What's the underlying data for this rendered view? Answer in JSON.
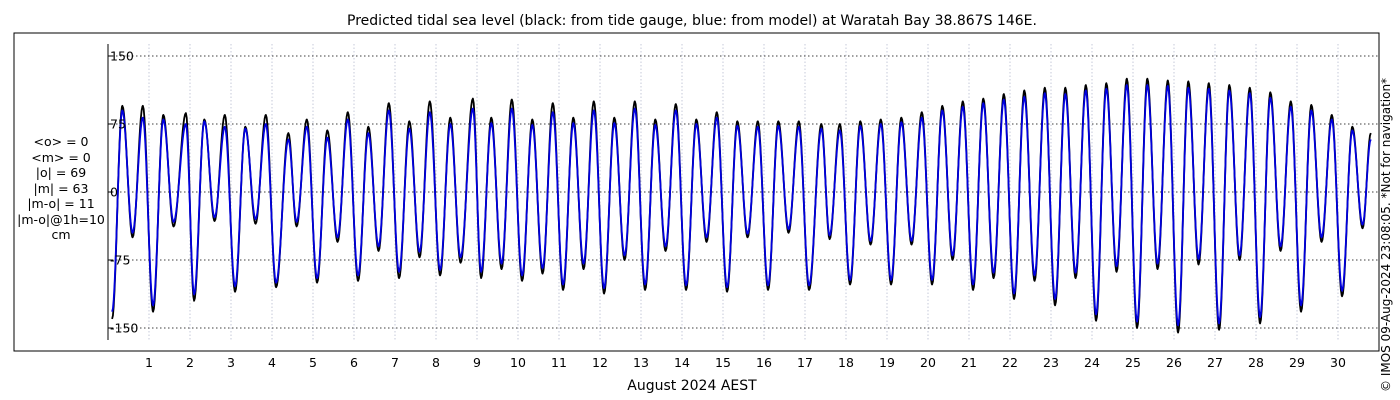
{
  "chart_data": {
    "type": "line",
    "title": "Predicted tidal sea level (black: from tide gauge, blue: from model) at Waratah Bay 38.867S 146E.",
    "xlabel": "August 2024 AEST",
    "ylabel": "",
    "ylim": [
      -150,
      150
    ],
    "xlim": [
      0,
      31
    ],
    "yticks": [
      -150,
      -75,
      0,
      75,
      150
    ],
    "y_tick_labels": [
      "-150",
      "-75",
      "0",
      "75",
      "150"
    ],
    "x_tick_labels": [
      "1",
      "2",
      "3",
      "4",
      "5",
      "6",
      "7",
      "8",
      "9",
      "10",
      "11",
      "12",
      "13",
      "14",
      "15",
      "16",
      "17",
      "18",
      "19",
      "20",
      "21",
      "22",
      "23",
      "24",
      "25",
      "26",
      "27",
      "28",
      "29",
      "30"
    ],
    "grid": true,
    "series_colors": {
      "gauge": "#000000",
      "model": "#0000dd"
    },
    "series": [
      {
        "color": "#000000",
        "high_tides": [
          [
            0.35,
            95
          ],
          [
            0.85,
            95
          ],
          [
            1.35,
            85
          ],
          [
            1.9,
            87
          ],
          [
            2.35,
            80
          ],
          [
            2.85,
            85
          ],
          [
            3.35,
            72
          ],
          [
            3.85,
            85
          ],
          [
            4.4,
            65
          ],
          [
            4.85,
            80
          ],
          [
            5.35,
            68
          ],
          [
            5.85,
            88
          ],
          [
            6.35,
            72
          ],
          [
            6.85,
            98
          ],
          [
            7.35,
            78
          ],
          [
            7.85,
            100
          ],
          [
            8.35,
            82
          ],
          [
            8.9,
            103
          ],
          [
            9.35,
            82
          ],
          [
            9.85,
            102
          ],
          [
            10.35,
            80
          ],
          [
            10.85,
            98
          ],
          [
            11.35,
            82
          ],
          [
            11.85,
            100
          ],
          [
            12.35,
            82
          ],
          [
            12.85,
            100
          ],
          [
            13.35,
            80
          ],
          [
            13.85,
            97
          ],
          [
            14.35,
            80
          ],
          [
            14.85,
            88
          ],
          [
            15.35,
            78
          ],
          [
            15.85,
            78
          ],
          [
            16.35,
            78
          ],
          [
            16.85,
            78
          ],
          [
            17.4,
            75
          ],
          [
            17.85,
            75
          ],
          [
            18.35,
            78
          ],
          [
            18.85,
            80
          ],
          [
            19.35,
            82
          ],
          [
            19.85,
            88
          ],
          [
            20.35,
            95
          ],
          [
            20.85,
            100
          ],
          [
            21.35,
            103
          ],
          [
            21.85,
            108
          ],
          [
            22.35,
            112
          ],
          [
            22.85,
            115
          ],
          [
            23.35,
            115
          ],
          [
            23.85,
            118
          ],
          [
            24.35,
            120
          ],
          [
            24.85,
            125
          ],
          [
            25.35,
            125
          ],
          [
            25.85,
            123
          ],
          [
            26.35,
            122
          ],
          [
            26.85,
            120
          ],
          [
            27.35,
            118
          ],
          [
            27.85,
            115
          ],
          [
            28.35,
            110
          ],
          [
            28.85,
            100
          ],
          [
            29.35,
            96
          ],
          [
            29.85,
            85
          ],
          [
            30.35,
            72
          ],
          [
            30.8,
            65
          ]
        ],
        "low_tides": [
          [
            0.1,
            -140
          ],
          [
            0.6,
            -50
          ],
          [
            1.1,
            -132
          ],
          [
            1.6,
            -38
          ],
          [
            2.1,
            -120
          ],
          [
            2.6,
            -32
          ],
          [
            3.1,
            -110
          ],
          [
            3.6,
            -35
          ],
          [
            4.1,
            -105
          ],
          [
            4.6,
            -38
          ],
          [
            5.1,
            -100
          ],
          [
            5.6,
            -55
          ],
          [
            6.1,
            -98
          ],
          [
            6.6,
            -65
          ],
          [
            7.1,
            -95
          ],
          [
            7.6,
            -72
          ],
          [
            8.1,
            -92
          ],
          [
            8.6,
            -78
          ],
          [
            9.1,
            -95
          ],
          [
            9.6,
            -85
          ],
          [
            10.1,
            -98
          ],
          [
            10.6,
            -90
          ],
          [
            11.1,
            -108
          ],
          [
            11.6,
            -85
          ],
          [
            12.1,
            -112
          ],
          [
            12.6,
            -75
          ],
          [
            13.1,
            -108
          ],
          [
            13.6,
            -65
          ],
          [
            14.1,
            -108
          ],
          [
            14.6,
            -55
          ],
          [
            15.1,
            -110
          ],
          [
            15.6,
            -50
          ],
          [
            16.1,
            -108
          ],
          [
            16.6,
            -45
          ],
          [
            17.1,
            -108
          ],
          [
            17.6,
            -52
          ],
          [
            18.1,
            -102
          ],
          [
            18.6,
            -58
          ],
          [
            19.1,
            -102
          ],
          [
            19.6,
            -58
          ],
          [
            20.1,
            -102
          ],
          [
            20.6,
            -75
          ],
          [
            21.1,
            -108
          ],
          [
            21.6,
            -95
          ],
          [
            22.1,
            -118
          ],
          [
            22.6,
            -98
          ],
          [
            23.1,
            -125
          ],
          [
            23.6,
            -95
          ],
          [
            24.1,
            -142
          ],
          [
            24.6,
            -88
          ],
          [
            25.1,
            -150
          ],
          [
            25.6,
            -85
          ],
          [
            26.1,
            -155
          ],
          [
            26.6,
            -80
          ],
          [
            27.1,
            -152
          ],
          [
            27.6,
            -75
          ],
          [
            28.1,
            -145
          ],
          [
            28.6,
            -65
          ],
          [
            29.1,
            -132
          ],
          [
            29.6,
            -55
          ],
          [
            30.1,
            -115
          ],
          [
            30.6,
            -40
          ]
        ]
      },
      {
        "color": "#0000dd",
        "high_tides": [
          [
            0.35,
            90
          ],
          [
            0.85,
            82
          ],
          [
            1.35,
            80
          ],
          [
            1.9,
            75
          ],
          [
            2.35,
            78
          ],
          [
            2.85,
            72
          ],
          [
            3.35,
            70
          ],
          [
            3.85,
            75
          ],
          [
            4.4,
            58
          ],
          [
            4.85,
            72
          ],
          [
            5.35,
            60
          ],
          [
            5.85,
            80
          ],
          [
            6.35,
            65
          ],
          [
            6.85,
            90
          ],
          [
            7.35,
            70
          ],
          [
            7.85,
            88
          ],
          [
            8.35,
            75
          ],
          [
            8.9,
            92
          ],
          [
            9.35,
            76
          ],
          [
            9.85,
            92
          ],
          [
            10.35,
            74
          ],
          [
            10.85,
            88
          ],
          [
            11.35,
            76
          ],
          [
            11.85,
            90
          ],
          [
            12.35,
            76
          ],
          [
            12.85,
            92
          ],
          [
            13.35,
            74
          ],
          [
            13.85,
            90
          ],
          [
            14.35,
            75
          ],
          [
            14.85,
            82
          ],
          [
            15.35,
            73
          ],
          [
            15.85,
            72
          ],
          [
            16.35,
            73
          ],
          [
            16.85,
            72
          ],
          [
            17.4,
            70
          ],
          [
            17.85,
            68
          ],
          [
            18.35,
            73
          ],
          [
            18.85,
            75
          ],
          [
            19.35,
            77
          ],
          [
            19.85,
            82
          ],
          [
            20.35,
            90
          ],
          [
            20.85,
            94
          ],
          [
            21.35,
            98
          ],
          [
            21.85,
            102
          ],
          [
            22.35,
            105
          ],
          [
            22.85,
            109
          ],
          [
            23.35,
            108
          ],
          [
            23.85,
            112
          ],
          [
            24.35,
            114
          ],
          [
            24.85,
            118
          ],
          [
            25.35,
            118
          ],
          [
            25.85,
            117
          ],
          [
            26.35,
            115
          ],
          [
            26.85,
            114
          ],
          [
            27.35,
            112
          ],
          [
            27.85,
            109
          ],
          [
            28.35,
            104
          ],
          [
            28.85,
            94
          ],
          [
            29.35,
            90
          ],
          [
            29.85,
            80
          ],
          [
            30.35,
            68
          ],
          [
            30.8,
            58
          ]
        ],
        "low_tides": [
          [
            0.1,
            -132
          ],
          [
            0.6,
            -45
          ],
          [
            1.1,
            -125
          ],
          [
            1.6,
            -33
          ],
          [
            2.1,
            -113
          ],
          [
            2.6,
            -28
          ],
          [
            3.1,
            -104
          ],
          [
            3.6,
            -30
          ],
          [
            4.1,
            -100
          ],
          [
            4.6,
            -33
          ],
          [
            5.1,
            -95
          ],
          [
            5.6,
            -50
          ],
          [
            6.1,
            -92
          ],
          [
            6.6,
            -60
          ],
          [
            7.1,
            -88
          ],
          [
            7.6,
            -66
          ],
          [
            8.1,
            -86
          ],
          [
            8.6,
            -72
          ],
          [
            9.1,
            -88
          ],
          [
            9.6,
            -79
          ],
          [
            10.1,
            -92
          ],
          [
            10.6,
            -84
          ],
          [
            11.1,
            -102
          ],
          [
            11.6,
            -79
          ],
          [
            12.1,
            -106
          ],
          [
            12.6,
            -70
          ],
          [
            13.1,
            -102
          ],
          [
            13.6,
            -60
          ],
          [
            14.1,
            -103
          ],
          [
            14.6,
            -50
          ],
          [
            15.1,
            -105
          ],
          [
            15.6,
            -46
          ],
          [
            16.1,
            -103
          ],
          [
            16.6,
            -41
          ],
          [
            17.1,
            -103
          ],
          [
            17.6,
            -48
          ],
          [
            18.1,
            -97
          ],
          [
            18.6,
            -54
          ],
          [
            19.1,
            -97
          ],
          [
            19.6,
            -54
          ],
          [
            20.1,
            -97
          ],
          [
            20.6,
            -70
          ],
          [
            21.1,
            -102
          ],
          [
            21.6,
            -89
          ],
          [
            22.1,
            -112
          ],
          [
            22.6,
            -92
          ],
          [
            23.1,
            -118
          ],
          [
            23.6,
            -89
          ],
          [
            24.1,
            -135
          ],
          [
            24.6,
            -82
          ],
          [
            25.1,
            -143
          ],
          [
            25.6,
            -79
          ],
          [
            26.1,
            -147
          ],
          [
            26.6,
            -74
          ],
          [
            27.1,
            -145
          ],
          [
            27.6,
            -70
          ],
          [
            28.1,
            -138
          ],
          [
            28.6,
            -60
          ],
          [
            29.1,
            -125
          ],
          [
            29.6,
            -50
          ],
          [
            30.1,
            -109
          ],
          [
            30.6,
            -36
          ]
        ]
      }
    ]
  },
  "stats": [
    "<o> = 0",
    "<m> = 0",
    "|o| = 69",
    "|m| = 63",
    "|m-o| = 11",
    "|m-o|@1h=10",
    "cm"
  ],
  "side_note": "© IMOS 09-Aug-2024 23:08:05. *Not for navigation*"
}
